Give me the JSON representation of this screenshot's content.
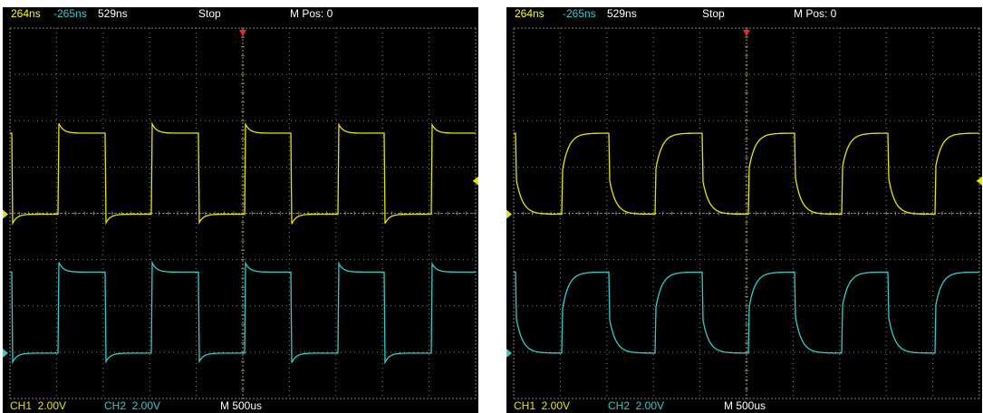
{
  "scopes": [
    {
      "cursor_a": "264ns",
      "cursor_b": "-265ns",
      "cursor_delta": "529ns",
      "run_state": "Stop",
      "m_pos": "M Pos: 0",
      "ch1_scale": "CH1  2.00V",
      "ch2_scale": "CH2  2.00V",
      "timebase": "M 500us"
    },
    {
      "cursor_a": "264ns",
      "cursor_b": "-265ns",
      "cursor_delta": "529ns",
      "run_state": "Stop",
      "m_pos": "M Pos: 0",
      "ch1_scale": "CH1  2.00V",
      "ch2_scale": "CH2  2.00V",
      "timebase": "M 500us"
    }
  ],
  "colors": {
    "ch1": "#e6e600",
    "ch2": "#33cccc",
    "cursor_a": "#ffff00",
    "cursor_b": "#33cccc",
    "trigger": "#ff2020",
    "grid": "#7f7f7f",
    "background": "#000000"
  },
  "icons": {
    "trigger_marker": "trigger-position-arrow-icon",
    "ch1_ground": "ch1-ground-marker-icon",
    "ch2_ground": "ch2-ground-marker-icon",
    "trigger_level": "trigger-level-arrow-icon"
  }
}
